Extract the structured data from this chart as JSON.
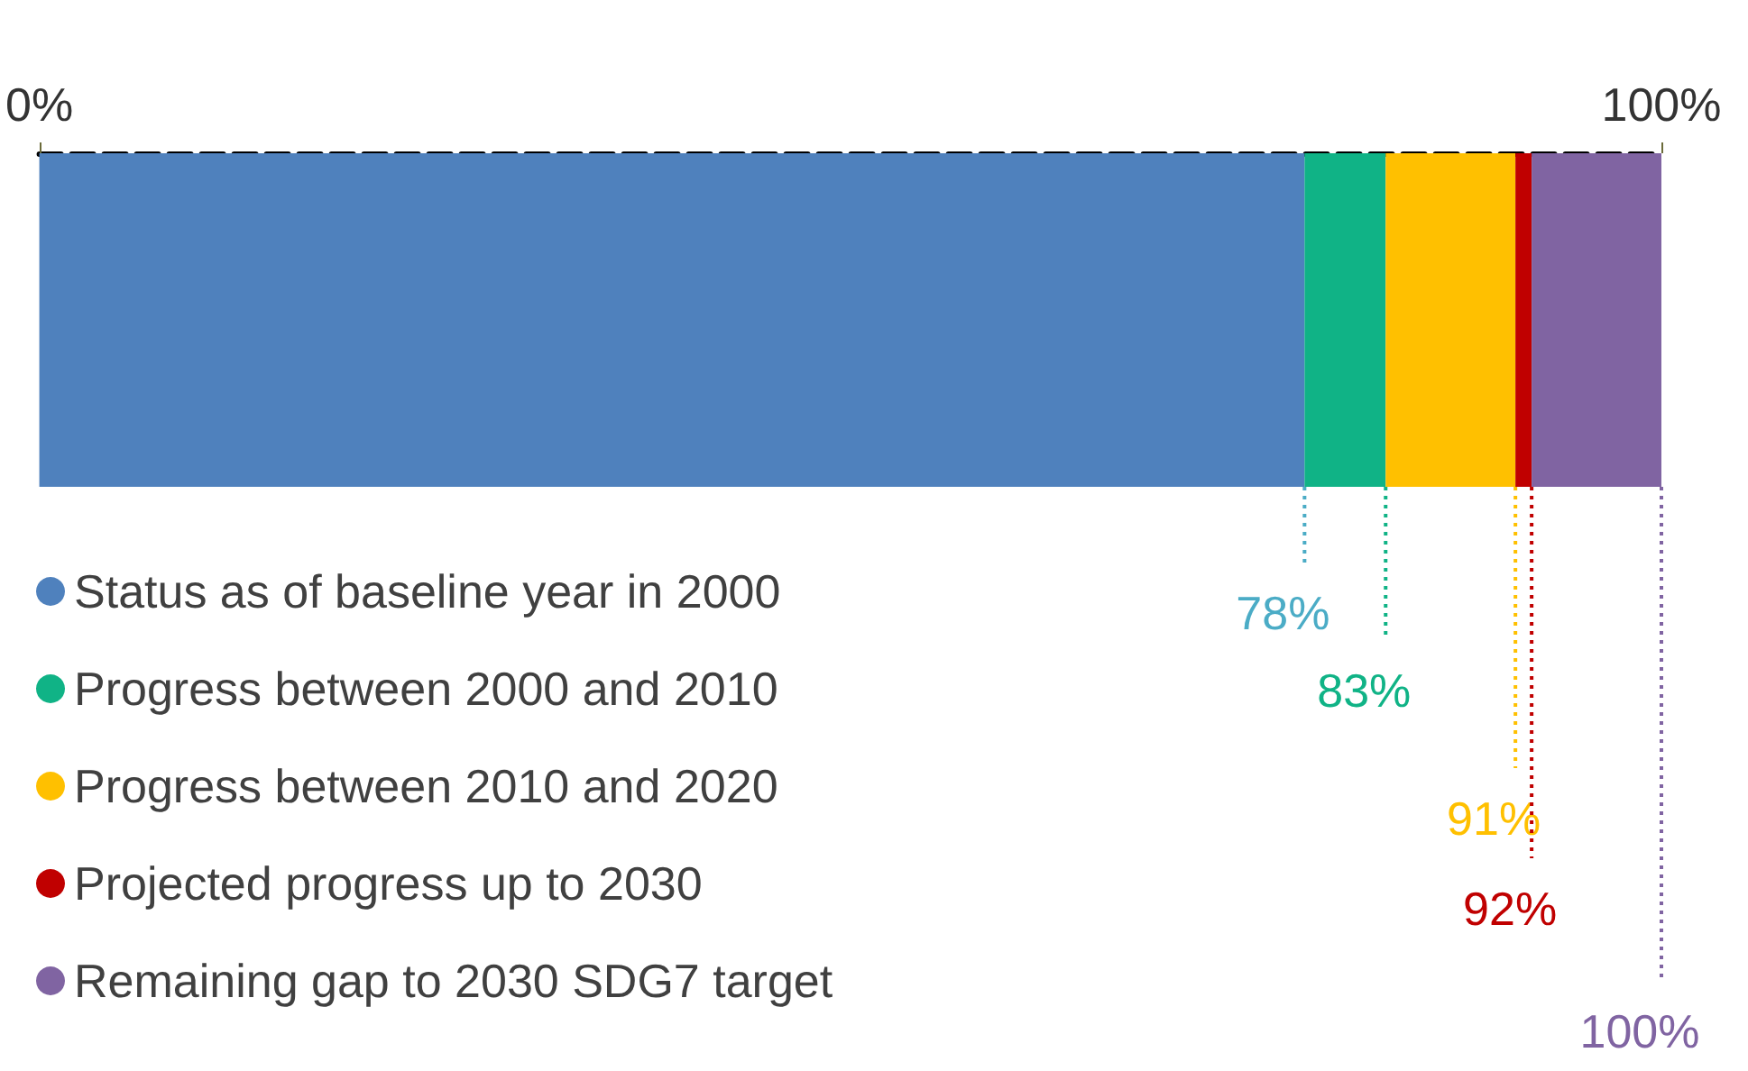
{
  "chart_data": {
    "type": "bar",
    "stacked": true,
    "orientation": "horizontal",
    "categories": [
      null
    ],
    "xlim": [
      0,
      100
    ],
    "xticks": [
      {
        "value": 0,
        "label": "0%"
      },
      {
        "value": 100,
        "label": "100%"
      }
    ],
    "series": [
      {
        "name": "Status as of baseline year in 2000",
        "color": "#4f81bd",
        "values": [
          78
        ]
      },
      {
        "name": "Progress between 2000 and 2010",
        "color": "#10b386",
        "values": [
          5
        ]
      },
      {
        "name": "Progress between 2010 and 2020",
        "color": "#ffc000",
        "values": [
          8
        ]
      },
      {
        "name": "Projected progress up to 2030",
        "color": "#c00000",
        "values": [
          1
        ]
      },
      {
        "name": "Remaining gap to 2030 SDG7 target",
        "color": "#8064a2",
        "values": [
          8
        ]
      }
    ],
    "ref_lines": [
      {
        "axis": "x",
        "value": 78,
        "label": "78%",
        "color": "#4bacc6",
        "line_style": "dotted"
      },
      {
        "axis": "x",
        "value": 83,
        "label": "83%",
        "color": "#10b386",
        "line_style": "dotted"
      },
      {
        "axis": "x",
        "value": 91,
        "label": "91%",
        "color": "#ffc000",
        "line_style": "dotted"
      },
      {
        "axis": "x",
        "value": 92,
        "label": "92%",
        "color": "#c00000",
        "line_style": "dotted"
      },
      {
        "axis": "x",
        "value": 100,
        "label": "100%",
        "color": "#8064a2",
        "line_style": "dotted"
      }
    ],
    "legend": "bottom left",
    "grid": false
  }
}
